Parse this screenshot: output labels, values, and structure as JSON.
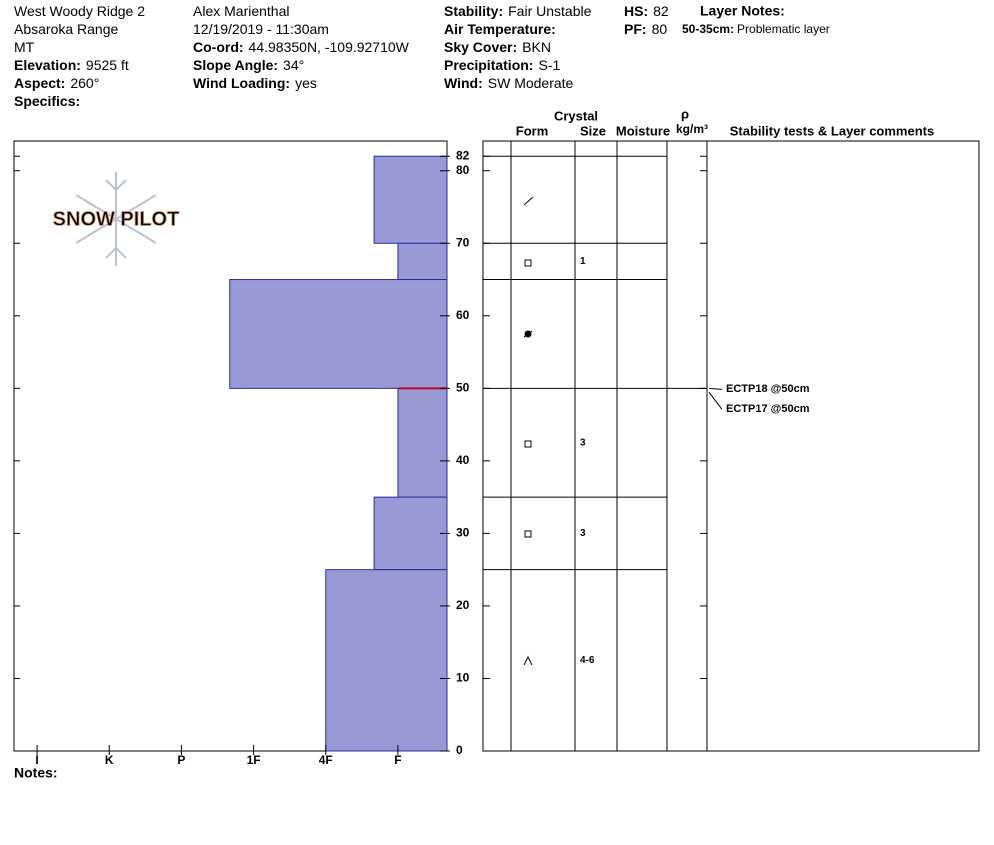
{
  "header": {
    "columns": [
      [
        {
          "value": "West Woody Ridge 2"
        },
        {
          "value": "Absaroka Range"
        },
        {
          "value": "MT"
        },
        {
          "label": "Elevation:",
          "value": "9525 ft"
        },
        {
          "label": "Aspect:",
          "value": "260°"
        },
        {
          "label": "Specifics:"
        }
      ],
      [
        {
          "value": "Alex Marienthal"
        },
        {
          "value": "12/19/2019 - 11:30am"
        },
        {
          "label": "Co-ord:",
          "value": "44.98350N, -109.92710W"
        },
        {
          "label": "Slope Angle:",
          "value": "34°"
        },
        {
          "label": "Wind Loading:",
          "value": "yes"
        }
      ],
      [
        {
          "label": "Stability:",
          "value": "Fair Unstable"
        },
        {
          "label": "Air Temperature:"
        },
        {
          "label": "Sky Cover:",
          "value": "BKN"
        },
        {
          "label": "Precipitation:",
          "value": "S-1"
        },
        {
          "label": "Wind:",
          "value": "SW Moderate"
        }
      ],
      [
        {
          "label": "HS:",
          "value": "82"
        },
        {
          "label": "PF:",
          "value": "80"
        }
      ]
    ],
    "layer_notes": {
      "label": "Layer Notes:",
      "note_label": "50-35cm:",
      "note": "Problematic layer"
    },
    "logo": "SNOW PILOT",
    "notes": "Notes:"
  },
  "table": {
    "crystal": "Crystal",
    "form": "Form",
    "size": "Size",
    "moisture": "Moisture",
    "rho": "ρ",
    "density_unit": "kg/m³",
    "comments": "Stability tests & Layer comments"
  },
  "chart_data": {
    "type": "profile",
    "ylim": [
      0,
      84.1
    ],
    "yticks": [
      0,
      10,
      20,
      30,
      40,
      50,
      60,
      70,
      80,
      82
    ],
    "xlim": [
      6.32,
      0.32
    ],
    "xticks": [
      {
        "value": 6,
        "label": "I"
      },
      {
        "value": 5,
        "label": "K"
      },
      {
        "value": 4,
        "label": "P"
      },
      {
        "value": 3,
        "label": "1F"
      },
      {
        "value": 2,
        "label": "4F"
      },
      {
        "value": 1,
        "label": "F"
      }
    ],
    "color": "#9999d6",
    "layers": {
      "top": [
        82,
        70,
        65,
        50,
        35,
        25
      ],
      "bottom": [
        70,
        65,
        50,
        35,
        25,
        0
      ],
      "hardness": [
        1.33,
        1,
        3.33,
        1,
        1.33,
        2
      ],
      "size": [
        null,
        "1",
        null,
        "3",
        "3",
        "4-6"
      ]
    },
    "tests": {
      "depth": 50,
      "labels": [
        "ECTP18 @50cm",
        "ECTP17 @50cm"
      ]
    }
  }
}
